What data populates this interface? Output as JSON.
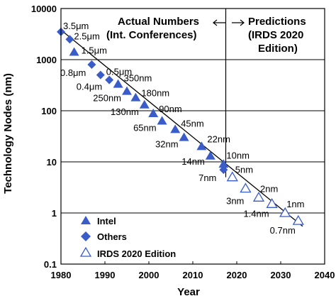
{
  "chart_data": {
    "type": "scatter",
    "xlabel": "Year",
    "ylabel": "Technology Nodes (nm)",
    "xlim": [
      1980,
      2040
    ],
    "ylim": [
      0.1,
      10000
    ],
    "y_scale": "log",
    "grid": "horizontal",
    "x_ticks": [
      "1980",
      "1990",
      "2000",
      "2010",
      "2020",
      "2030",
      "2040"
    ],
    "y_ticks": [
      "0.1",
      "1",
      "10",
      "100",
      "1000",
      "10000"
    ],
    "annotations": {
      "actual_line1": "Actual Numbers",
      "actual_line2": "(Int. Conferences)",
      "pred_line1": "Predictions",
      "pred_line2": "(IRDS 2020",
      "pred_line3": "Edition)",
      "divider_year": 2017.5
    },
    "legend": {
      "placement": "bottom-left",
      "entries": [
        {
          "name": "Intel",
          "marker": "triangle-filled"
        },
        {
          "name": "Others",
          "marker": "diamond-filled"
        },
        {
          "name": "IRDS 2020 Edition",
          "marker": "triangle-open"
        }
      ]
    },
    "trend_line": {
      "x": [
        1980,
        2035
      ],
      "y": [
        3800,
        0.55
      ]
    },
    "series": [
      {
        "name": "Intel",
        "marker": "triangle-filled",
        "points": [
          {
            "x": 1983,
            "y": 1400
          },
          {
            "x": 1993,
            "y": 330
          },
          {
            "x": 1995,
            "y": 240
          },
          {
            "x": 1997,
            "y": 180
          },
          {
            "x": 1999,
            "y": 130
          },
          {
            "x": 2001,
            "y": 88
          },
          {
            "x": 2003,
            "y": 63
          },
          {
            "x": 2006,
            "y": 43
          },
          {
            "x": 2008,
            "y": 30
          },
          {
            "x": 2012,
            "y": 20
          },
          {
            "x": 2014,
            "y": 13
          },
          {
            "x": 2017,
            "y": 9
          }
        ]
      },
      {
        "name": "Others",
        "marker": "diamond-filled",
        "points": [
          {
            "x": 1980,
            "y": 3500
          },
          {
            "x": 1982,
            "y": 2500
          },
          {
            "x": 1987,
            "y": 800
          },
          {
            "x": 1989,
            "y": 500
          },
          {
            "x": 1991,
            "y": 400
          },
          {
            "x": 2017,
            "y": 7
          }
        ]
      },
      {
        "name": "IRDS 2020 Edition",
        "marker": "triangle-open",
        "points": [
          {
            "x": 2019,
            "y": 5
          },
          {
            "x": 2022,
            "y": 3
          },
          {
            "x": 2025,
            "y": 2
          },
          {
            "x": 2028,
            "y": 1.5
          },
          {
            "x": 2031,
            "y": 1
          },
          {
            "x": 2034,
            "y": 0.7
          }
        ]
      }
    ],
    "point_labels": [
      {
        "text": "3.5μm",
        "x": 1980,
        "y": 3500
      },
      {
        "text": "2.5μm",
        "x": 1982,
        "y": 2500
      },
      {
        "text": "1.5μm",
        "x": 1983,
        "y": 1400
      },
      {
        "text": "0.8μm",
        "x": 1987,
        "y": 800
      },
      {
        "text": "0.5μm",
        "x": 1989,
        "y": 500
      },
      {
        "text": "0.4μm",
        "x": 1991,
        "y": 400
      },
      {
        "text": "350nm",
        "x": 1993,
        "y": 330
      },
      {
        "text": "250nm",
        "x": 1995,
        "y": 240
      },
      {
        "text": "180nm",
        "x": 1997,
        "y": 180
      },
      {
        "text": "130nm",
        "x": 1999,
        "y": 130
      },
      {
        "text": "90nm",
        "x": 2001,
        "y": 88
      },
      {
        "text": "65nm",
        "x": 2003,
        "y": 63
      },
      {
        "text": "45nm",
        "x": 2006,
        "y": 43
      },
      {
        "text": "32nm",
        "x": 2008,
        "y": 30
      },
      {
        "text": "22nm",
        "x": 2012,
        "y": 20
      },
      {
        "text": "14nm",
        "x": 2014,
        "y": 13
      },
      {
        "text": "10nm",
        "x": 2017,
        "y": 9
      },
      {
        "text": "7nm",
        "x": 2017,
        "y": 7
      },
      {
        "text": "5nm",
        "x": 2019,
        "y": 5
      },
      {
        "text": "3nm",
        "x": 2022,
        "y": 3
      },
      {
        "text": "2nm",
        "x": 2025,
        "y": 2
      },
      {
        "text": "1.4nm",
        "x": 2028,
        "y": 1.5
      },
      {
        "text": "1nm",
        "x": 2031,
        "y": 1
      },
      {
        "text": "0.7nm",
        "x": 2034,
        "y": 0.7
      }
    ],
    "colors": {
      "marker": "#3a5cc8",
      "line": "#000000",
      "grid": "#000000"
    }
  }
}
